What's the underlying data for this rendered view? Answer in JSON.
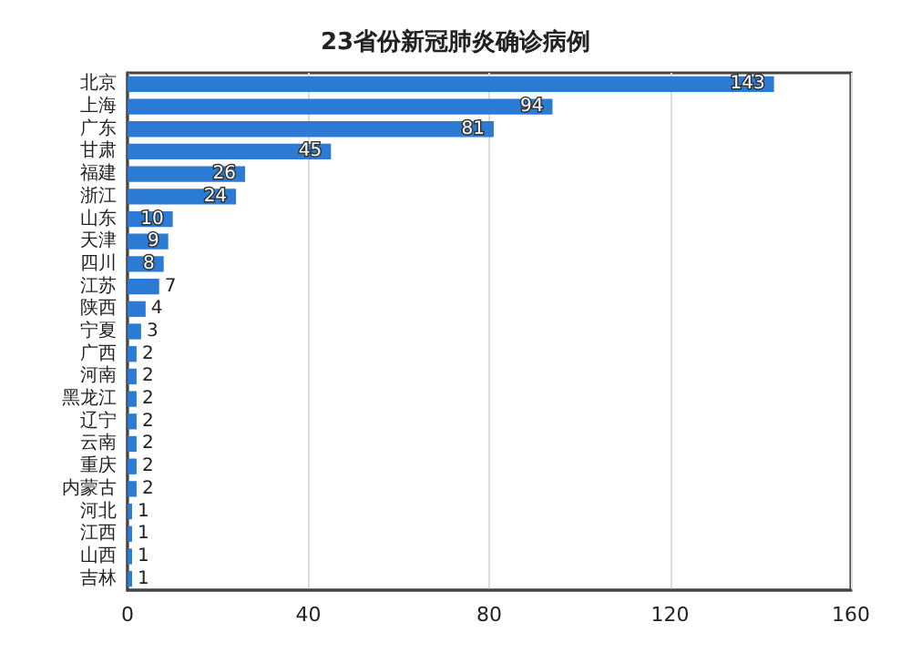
{
  "chart_data": {
    "type": "bar",
    "orientation": "horizontal",
    "title": "23省份新冠肺炎确诊病例",
    "categories": [
      "北京",
      "上海",
      "广东",
      "甘肃",
      "福建",
      "浙江",
      "山东",
      "天津",
      "四川",
      "江苏",
      "陕西",
      "宁夏",
      "广西",
      "河南",
      "黑龙江",
      "辽宁",
      "云南",
      "重庆",
      "内蒙古",
      "河北",
      "江西",
      "山西",
      "吉林"
    ],
    "values": [
      143,
      94,
      81,
      45,
      26,
      24,
      10,
      9,
      8,
      7,
      4,
      3,
      2,
      2,
      2,
      2,
      2,
      2,
      2,
      1,
      1,
      1,
      1
    ],
    "color": "#2b7bd4",
    "xlim": [
      0,
      160
    ],
    "xticks": [
      0,
      40,
      80,
      120,
      160
    ],
    "grid": "x",
    "data_labels": true
  }
}
